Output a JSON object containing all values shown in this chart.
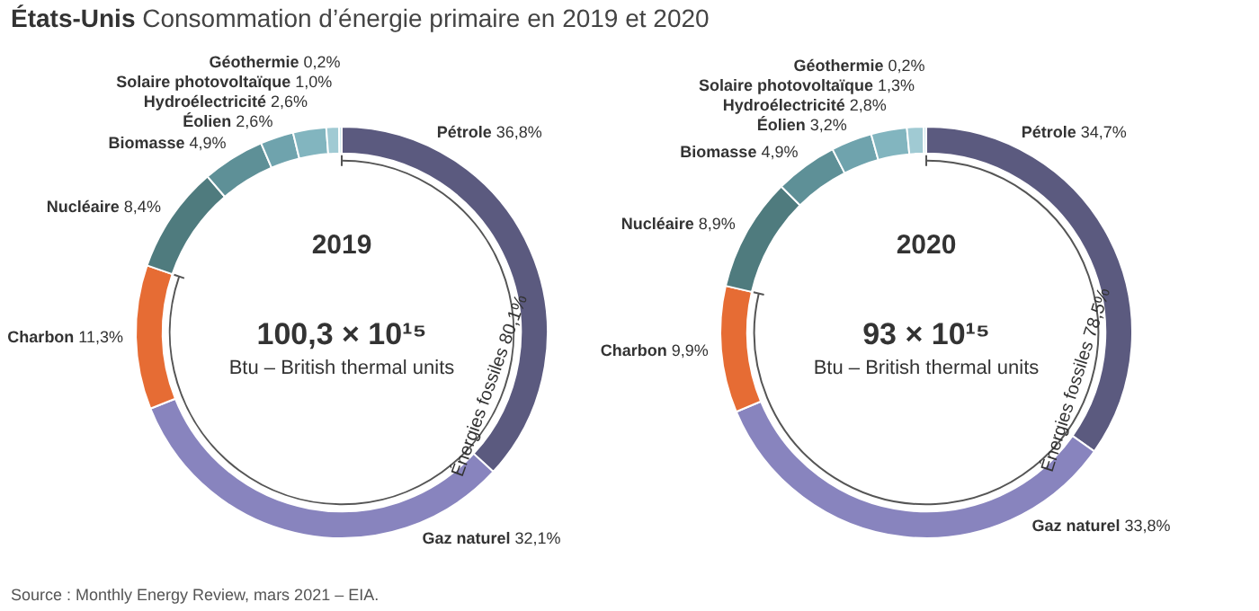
{
  "chart_data": [
    {
      "type": "donut",
      "title": "États-Unis",
      "subtitle": "Consommation d’énergie primaire en 2019 et 2020",
      "categories": [
        "Pétrole",
        "Gaz naturel",
        "Charbon",
        "Nucléaire",
        "Biomasse",
        "Éolien",
        "Hydroélectricité",
        "Solaire photovoltaïque",
        "Géothermie"
      ],
      "values": [
        36.8,
        32.1,
        11.3,
        8.4,
        4.9,
        2.6,
        2.6,
        1.0,
        0.2
      ],
      "value_labels": [
        "36,8%",
        "32,1%",
        "11,3%",
        "8,4%",
        "4,9%",
        "2,6%",
        "2,6%",
        "1,0%",
        "0,2%"
      ],
      "colors": [
        "#5b5a7f",
        "#8884be",
        "#e66c34",
        "#4f7b7e",
        "#5e9097",
        "#6fa3ad",
        "#82b5bf",
        "#a0cad3",
        "#c2e2e8"
      ],
      "annotations": [
        "2019",
        "100,3 × 10¹⁵",
        "Btu – British thermal units",
        {
          "text": "Énergies fossiles 80,1%",
          "x": "Charbon"
        },
        "Source : Monthly Energy Review, mars 2021 – EIA."
      ]
    },
    {
      "type": "donut",
      "categories": [
        "Pétrole",
        "Gaz naturel",
        "Charbon",
        "Nucléaire",
        "Biomasse",
        "Éolien",
        "Hydroélectricité",
        "Solaire photovoltaïque",
        "Géothermie"
      ],
      "values": [
        34.7,
        33.8,
        9.9,
        8.9,
        4.9,
        3.2,
        2.8,
        1.3,
        0.2
      ],
      "value_labels": [
        "34,7%",
        "33,8%",
        "9,9%",
        "8,9%",
        "4,9%",
        "3,2%",
        "2,8%",
        "1,3%",
        "0,2%"
      ],
      "colors": [
        "#5b5a7f",
        "#8884be",
        "#e66c34",
        "#4f7b7e",
        "#5e9097",
        "#6fa3ad",
        "#82b5bf",
        "#a0cad3",
        "#c2e2e8"
      ],
      "annotations": [
        "2020",
        "93 × 10¹⁵",
        "Btu – British thermal units",
        {
          "text": "Énergies fossiles 78,5%",
          "x": "Charbon"
        }
      ]
    }
  ]
}
